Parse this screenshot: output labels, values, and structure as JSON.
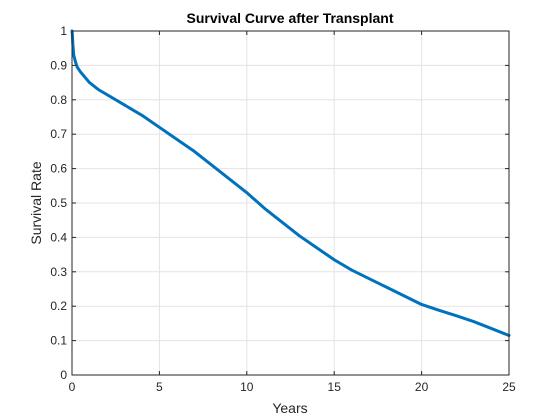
{
  "chart_data": {
    "type": "line",
    "title": "Survival Curve after Transplant",
    "xlabel": "Years",
    "ylabel": "Survival Rate",
    "xlim": [
      0,
      25
    ],
    "ylim": [
      0,
      1
    ],
    "xticks": [
      0,
      5,
      10,
      15,
      20,
      25
    ],
    "yticks": [
      0,
      0.1,
      0.2,
      0.3,
      0.4,
      0.5,
      0.6,
      0.7,
      0.8,
      0.9,
      1
    ],
    "ytick_labels": [
      "0",
      "0.1",
      "0.2",
      "0.3",
      "0.4",
      "0.5",
      "0.6",
      "0.7",
      "0.8",
      "0.9",
      "1"
    ],
    "grid": true,
    "series": [
      {
        "color": "#0072bd",
        "x": [
          0,
          0.02,
          0.05,
          0.1,
          0.2,
          0.3,
          0.5,
          0.75,
          1,
          1.5,
          2,
          3,
          4,
          5,
          6,
          7,
          8,
          9,
          10,
          11,
          12,
          13,
          14,
          15,
          16,
          17,
          18,
          19,
          20,
          21,
          22,
          23,
          24,
          25
        ],
        "y": [
          1.0,
          0.99,
          0.96,
          0.93,
          0.91,
          0.895,
          0.88,
          0.865,
          0.85,
          0.83,
          0.815,
          0.785,
          0.755,
          0.72,
          0.685,
          0.65,
          0.61,
          0.57,
          0.53,
          0.485,
          0.445,
          0.405,
          0.37,
          0.335,
          0.305,
          0.28,
          0.255,
          0.23,
          0.205,
          0.188,
          0.172,
          0.155,
          0.135,
          0.115
        ]
      }
    ]
  }
}
